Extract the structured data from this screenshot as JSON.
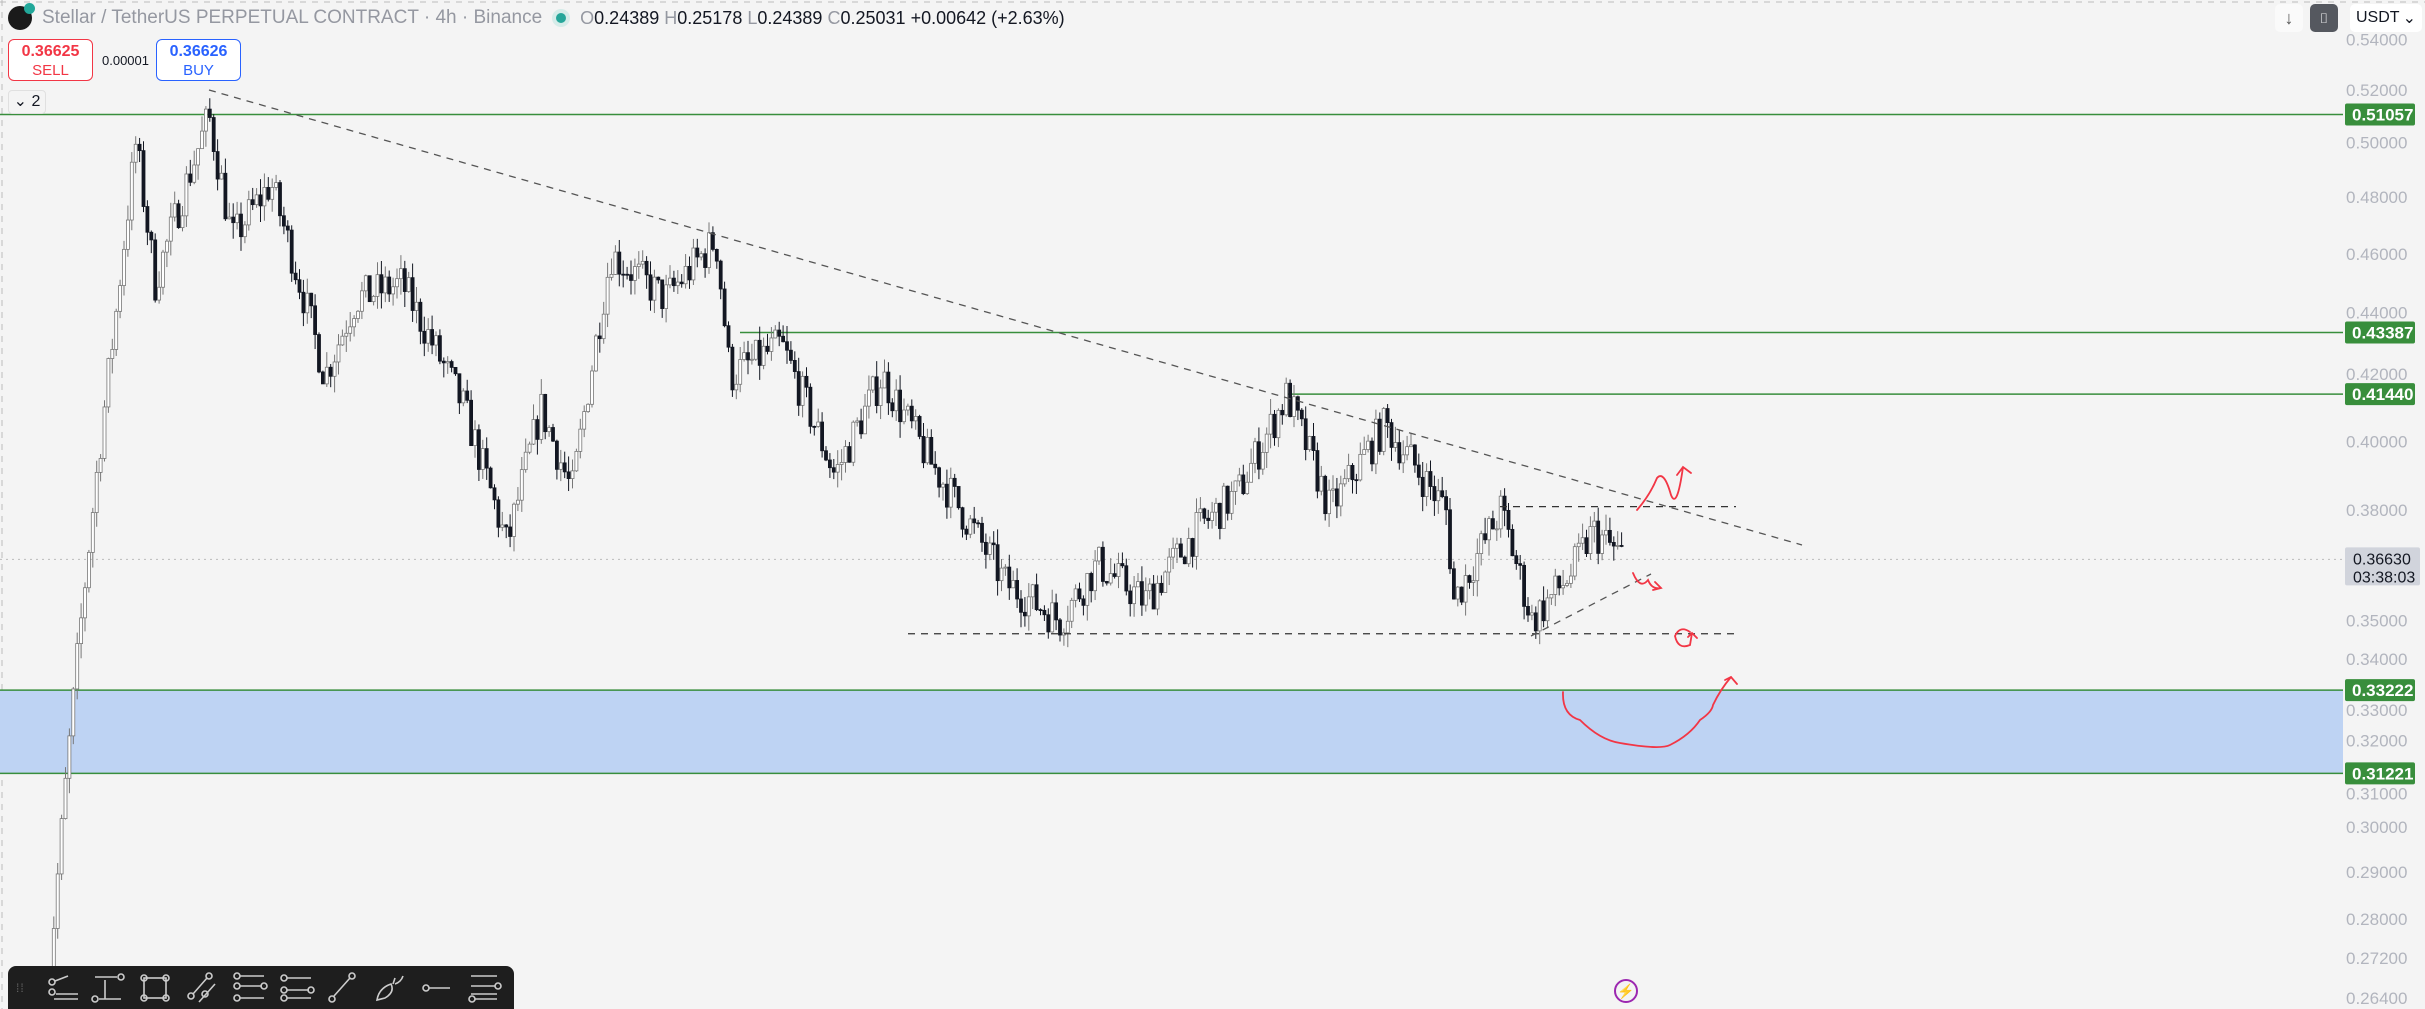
{
  "header": {
    "title": "Stellar / TetherUS PERPETUAL CONTRACT · 4h · Binance",
    "ohlc": {
      "o_label": "O",
      "o": "0.24389",
      "h_label": "H",
      "h": "0.25178",
      "l_label": "L",
      "l": "0.24389",
      "c_label": "C",
      "c": "0.25031",
      "change": "+0.00642 (+2.63%)"
    }
  },
  "trade": {
    "sell_price": "0.36625",
    "sell_label": "SELL",
    "spread": "0.00001",
    "buy_price": "0.36626",
    "buy_label": "BUY"
  },
  "legend_toggle": "⌄ 2",
  "topright": {
    "currency": "USDT",
    "down_icon": "arrow-down-icon",
    "snapshot_icon": "camera-icon"
  },
  "colors": {
    "level": "#388e3c",
    "zone": "#bed3f3",
    "drawing": "#f23645",
    "trend": "#555555",
    "candle": "#131722"
  },
  "chart_data": {
    "type": "candlestick",
    "scale": "log",
    "timeframe": "4h",
    "ylim": [
      0.262,
      0.548
    ],
    "ticks": [
      "0.54000",
      "0.52000",
      "0.50000",
      "0.48000",
      "0.46000",
      "0.44000",
      "0.42000",
      "0.40000",
      "0.38000",
      "0.35000",
      "0.34000",
      "0.33000",
      "0.32000",
      "0.31000",
      "0.30000",
      "0.29000",
      "0.28000",
      "0.27200",
      "0.26400"
    ],
    "levels": [
      "0.51057",
      "0.43387",
      "0.41440",
      "0.33222",
      "0.31221"
    ],
    "zone": [
      "0.33222",
      "0.31221"
    ],
    "last_price": "0.36630",
    "countdown": "03:38:03",
    "price_path": [
      0.26,
      0.3,
      0.36,
      0.44,
      0.5,
      0.45,
      0.51,
      0.465,
      0.485,
      0.42,
      0.445,
      0.45,
      0.41,
      0.37,
      0.41,
      0.385,
      0.46,
      0.445,
      0.465,
      0.42,
      0.43,
      0.39,
      0.42,
      0.395,
      0.36,
      0.35,
      0.365,
      0.355,
      0.375,
      0.385,
      0.414,
      0.38,
      0.405,
      0.38,
      0.355,
      0.38,
      0.35,
      0.362,
      0.374,
      0.3663
    ],
    "support_dashed": 0.3465,
    "resistance_dashed": 0.381
  },
  "toolbar": [
    "multi-level-icon",
    "price-range-icon",
    "rectangle-icon",
    "parallel-lines-icon",
    "fib-retracement-icon",
    "fib-extension-icon",
    "trend-line-icon",
    "brush-icon",
    "horizontal-ray-icon",
    "horizontal-lines-icon"
  ]
}
